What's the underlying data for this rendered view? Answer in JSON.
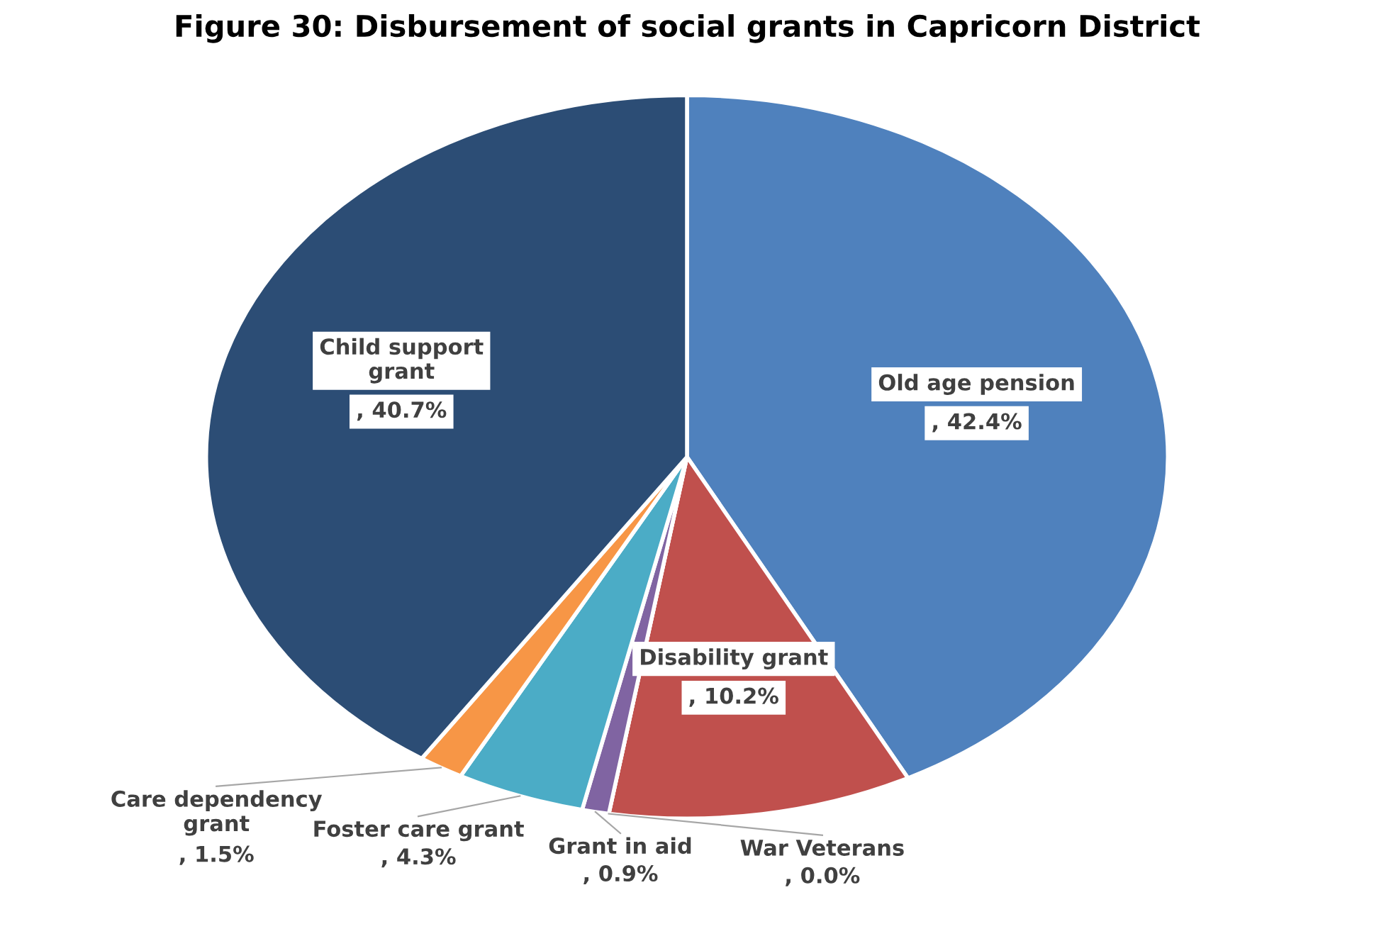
{
  "chart_data": {
    "type": "pie",
    "title": "Figure 30: Disbursement of social grants in Capricorn District",
    "categories": [
      "Old age pension",
      "Disability grant",
      "War Veterans",
      "Grant in aid",
      "Foster care grant",
      "Care dependency grant",
      "Child support grant"
    ],
    "values": [
      42.4,
      10.2,
      0.0,
      0.9,
      4.3,
      1.5,
      40.7
    ],
    "colors": [
      "#4f81bd",
      "#c0504d",
      "#9bbb59",
      "#8064a2",
      "#4bacc6",
      "#f79646",
      "#2c4d75"
    ],
    "value_labels": [
      ", 42.4%",
      ", 10.2%",
      ", 0.0%",
      ", 0.9%",
      ", 4.3%",
      ", 1.5%",
      ", 40.7%"
    ]
  }
}
